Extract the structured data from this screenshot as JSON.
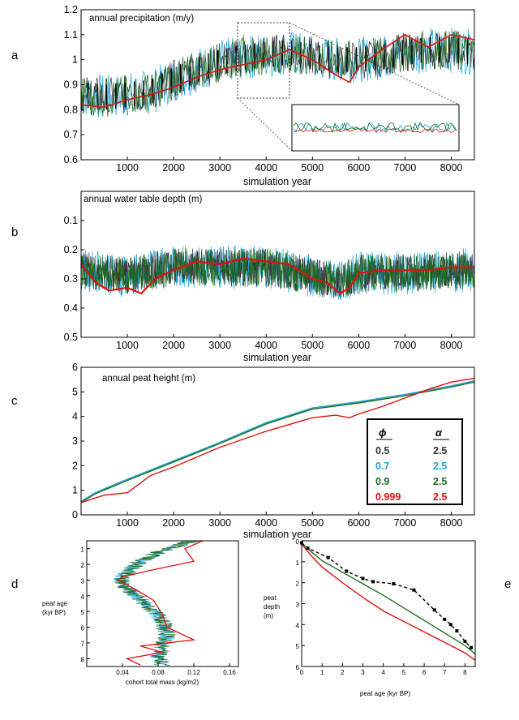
{
  "panel_labels": {
    "a": "a",
    "b": "b",
    "c": "c",
    "d": "d",
    "e": "e"
  },
  "colors": {
    "phi_0_5": "#333333",
    "phi_0_7": "#1aa3dd",
    "phi_0_9": "#1e6b1e",
    "phi_0_999": "#e01010",
    "observed": "#000000"
  },
  "chart_data": [
    {
      "id": "a",
      "type": "line",
      "title": "annual precipitation (m/y)",
      "xlabel": "simulation year",
      "ylabel": "",
      "xlim": [
        0,
        8500
      ],
      "ylim": [
        0.6,
        1.2
      ],
      "xticks": [
        "1000",
        "2000",
        "3000",
        "4000",
        "5000",
        "6000",
        "7000",
        "8000"
      ],
      "yticks": [
        "0.6",
        "0.7",
        "0.8",
        "0.9",
        "1",
        "1.1",
        "1.2"
      ],
      "series": [
        {
          "color": "#1e6b1e",
          "x": [
            0,
            500,
            1000,
            1500,
            2000,
            2500,
            3000,
            3500,
            4000,
            4500,
            5000,
            5500,
            6000,
            6500,
            7000,
            7500,
            8000,
            8500
          ],
          "y": [
            0.86,
            0.85,
            0.86,
            0.87,
            0.92,
            0.96,
            0.99,
            1.01,
            1.02,
            1.03,
            1.01,
            1.0,
            1.0,
            1.01,
            1.03,
            1.04,
            1.04,
            1.03
          ]
        },
        {
          "color": "#e01010",
          "x": [
            0,
            500,
            1000,
            1500,
            2000,
            2500,
            3000,
            3500,
            4000,
            4500,
            5000,
            5500,
            5800,
            6000,
            6500,
            7000,
            7500,
            8000,
            8500
          ],
          "y": [
            0.82,
            0.81,
            0.84,
            0.86,
            0.89,
            0.93,
            0.96,
            0.98,
            1.0,
            1.04,
            1.0,
            0.94,
            0.91,
            0.97,
            1.04,
            1.1,
            1.05,
            1.1,
            1.08
          ]
        }
      ]
    },
    {
      "id": "b",
      "type": "line",
      "title": "annual water table depth (m)",
      "xlabel": "simulation year",
      "ylabel": "",
      "xlim": [
        0,
        8500
      ],
      "ylim": [
        0.5,
        0.0
      ],
      "y_inverted": true,
      "xticks": [
        "1000",
        "2000",
        "3000",
        "4000",
        "5000",
        "6000",
        "7000",
        "8000"
      ],
      "yticks": [
        "0.1",
        "0.2",
        "0.3",
        "0.4",
        "0.5"
      ],
      "series": [
        {
          "color": "#1e6b1e",
          "x": [
            0,
            1000,
            2000,
            3000,
            4000,
            5000,
            5500,
            6000,
            7000,
            8000,
            8500
          ],
          "y": [
            0.27,
            0.29,
            0.26,
            0.26,
            0.26,
            0.29,
            0.31,
            0.28,
            0.28,
            0.27,
            0.27
          ]
        },
        {
          "color": "#e01010",
          "x": [
            0,
            300,
            600,
            1000,
            1300,
            1600,
            2000,
            2500,
            3000,
            3500,
            4000,
            4500,
            5000,
            5300,
            5600,
            5800,
            6000,
            6500,
            7000,
            7500,
            8000,
            8500
          ],
          "y": [
            0.25,
            0.31,
            0.34,
            0.33,
            0.35,
            0.3,
            0.27,
            0.24,
            0.25,
            0.23,
            0.24,
            0.25,
            0.3,
            0.31,
            0.35,
            0.33,
            0.28,
            0.27,
            0.27,
            0.27,
            0.26,
            0.26
          ]
        }
      ]
    },
    {
      "id": "c",
      "type": "line",
      "title": "annual peat height (m)",
      "xlabel": "simulation year",
      "ylabel": "",
      "xlim": [
        0,
        8500
      ],
      "ylim": [
        0,
        6
      ],
      "xticks": [
        "1000",
        "2000",
        "3000",
        "4000",
        "5000",
        "6000",
        "7000",
        "8000"
      ],
      "yticks": [
        "0",
        "1",
        "2",
        "3",
        "4",
        "5",
        "6"
      ],
      "legend": {
        "headers": [
          "ϕ",
          "α"
        ],
        "rows": [
          {
            "phi": "0.5",
            "alpha": "2.5",
            "color": "#333333"
          },
          {
            "phi": "0.7",
            "alpha": "2.5",
            "color": "#1aa3dd"
          },
          {
            "phi": "0.9",
            "alpha": "2.5",
            "color": "#1e6b1e"
          },
          {
            "phi": "0.999",
            "alpha": "2.5",
            "color": "#e01010"
          }
        ]
      },
      "series": [
        {
          "color": "#1aa3dd",
          "x": [
            0,
            300,
            1000,
            2000,
            3000,
            4000,
            5000,
            6000,
            7000,
            8000,
            8500
          ],
          "y": [
            0.55,
            0.9,
            1.45,
            2.2,
            2.95,
            3.75,
            4.35,
            4.6,
            4.9,
            5.25,
            5.45
          ]
        },
        {
          "color": "#1e6b1e",
          "x": [
            0,
            300,
            1000,
            2000,
            3000,
            4000,
            5000,
            6000,
            7000,
            8000,
            8500
          ],
          "y": [
            0.5,
            0.85,
            1.4,
            2.15,
            2.9,
            3.7,
            4.3,
            4.55,
            4.85,
            5.2,
            5.4
          ]
        },
        {
          "color": "#e01010",
          "x": [
            0,
            500,
            1000,
            1500,
            2000,
            3000,
            4000,
            5000,
            5500,
            5800,
            6000,
            6500,
            7000,
            7500,
            8000,
            8500
          ],
          "y": [
            0.5,
            0.8,
            0.9,
            1.6,
            1.95,
            2.75,
            3.4,
            3.95,
            4.05,
            3.95,
            4.1,
            4.4,
            4.75,
            5.1,
            5.4,
            5.55
          ]
        }
      ]
    },
    {
      "id": "d",
      "type": "line",
      "xlabel": "cohort total mass (kg/m2)",
      "ylabel": "peat age (kyr BP)",
      "xlim": [
        0,
        0.17
      ],
      "ylim": [
        8.5,
        0.5
      ],
      "y_inverted": true,
      "xticks": [
        "0.04",
        "0.08",
        "0.12",
        "0.16"
      ],
      "yticks": [
        "1",
        "2",
        "3",
        "4",
        "5",
        "6",
        "7",
        "8"
      ],
      "series": [
        {
          "color": "#1e6b1e",
          "x": [
            0.12,
            0.09,
            0.06,
            0.045,
            0.038,
            0.045,
            0.06,
            0.075,
            0.085,
            0.09,
            0.085,
            0.08,
            0.085
          ],
          "y": [
            0.5,
            1.0,
            1.8,
            2.5,
            3.0,
            3.5,
            4.2,
            5.0,
            5.7,
            6.5,
            7.2,
            7.8,
            8.4
          ]
        },
        {
          "color": "#e01010",
          "x": [
            0.13,
            0.11,
            0.12,
            0.07,
            0.04,
            0.035,
            0.055,
            0.075,
            0.085,
            0.09,
            0.12,
            0.06,
            0.085,
            0.045,
            0.06
          ],
          "y": [
            0.5,
            1.0,
            1.8,
            2.4,
            2.8,
            3.0,
            3.6,
            4.3,
            5.2,
            6.0,
            6.8,
            7.2,
            7.6,
            8.0,
            8.4
          ]
        }
      ]
    },
    {
      "id": "e",
      "type": "line",
      "xlabel": "peat age (kyr BP)",
      "ylabel": "peat depth (m)",
      "xlim": [
        0,
        8.5
      ],
      "ylim": [
        6,
        0
      ],
      "y_inverted": true,
      "xticks": [
        "0",
        "1",
        "2",
        "3",
        "4",
        "5",
        "6",
        "7",
        "8"
      ],
      "yticks": [
        "0",
        "1",
        "2",
        "3",
        "4",
        "5",
        "6"
      ],
      "series": [
        {
          "color": "#1e6b1e",
          "x": [
            0,
            0.5,
            1,
            2,
            3,
            4,
            5,
            6,
            7,
            8,
            8.5
          ],
          "y": [
            0.1,
            0.55,
            0.95,
            1.5,
            2.05,
            2.6,
            3.2,
            3.8,
            4.4,
            5.0,
            5.4
          ]
        },
        {
          "color": "#e01010",
          "x": [
            0,
            0.5,
            1,
            2,
            3,
            4,
            5,
            6,
            7,
            8,
            8.5
          ],
          "y": [
            0.15,
            0.75,
            1.25,
            2.0,
            2.7,
            3.35,
            3.85,
            4.35,
            4.85,
            5.35,
            5.7
          ]
        },
        {
          "color": "#000000",
          "dashed": true,
          "markers": true,
          "x": [
            0,
            0.3,
            1.3,
            2.2,
            3.0,
            3.5,
            4.5,
            5.5,
            6.5,
            7.0,
            7.3,
            7.6,
            8.0,
            8.3
          ],
          "y": [
            0.1,
            0.35,
            0.8,
            1.45,
            1.8,
            1.95,
            2.05,
            2.35,
            3.3,
            3.75,
            4.0,
            4.3,
            4.8,
            5.1
          ]
        }
      ]
    }
  ]
}
